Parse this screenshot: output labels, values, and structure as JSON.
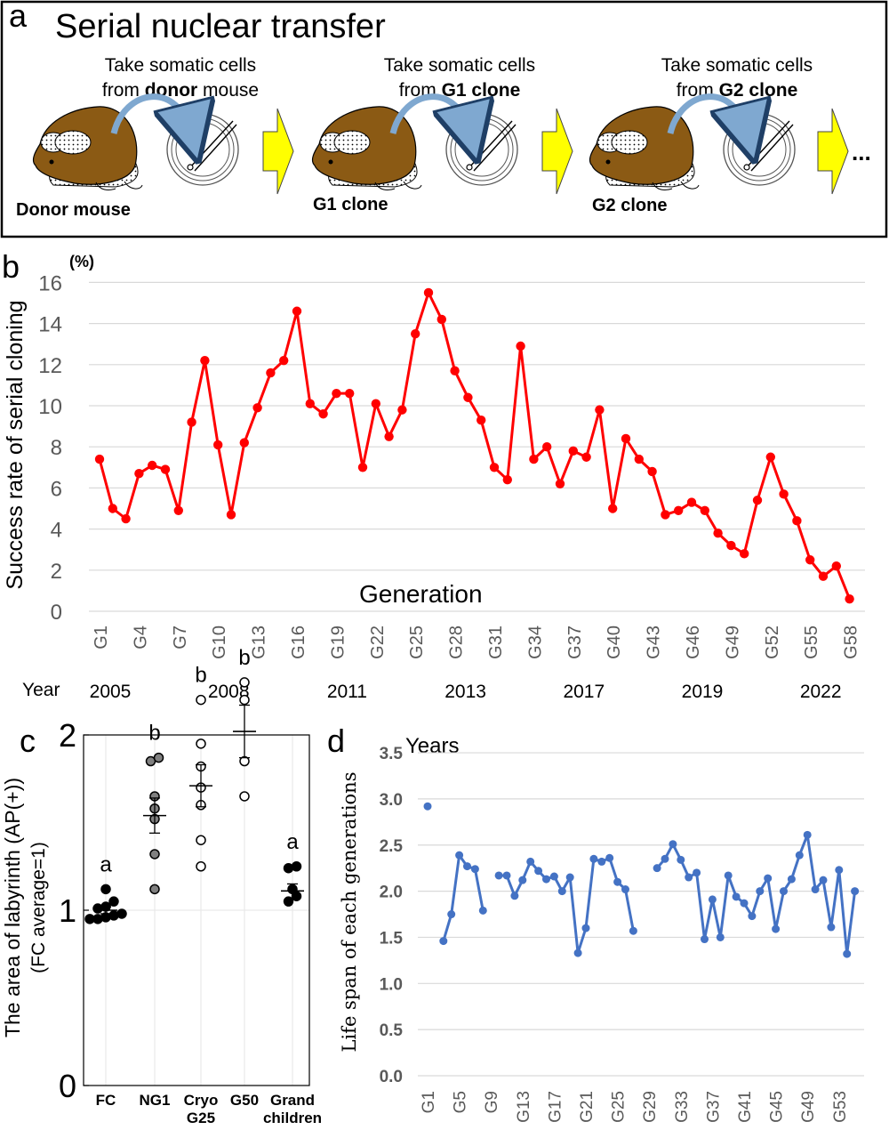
{
  "panel_a": {
    "letter": "a",
    "title": "Serial nuclear transfer",
    "steps": [
      {
        "line1": "Take somatic cells",
        "pre": "from ",
        "bold": "donor",
        "post": " mouse",
        "label": "Donor mouse"
      },
      {
        "line1": "Take somatic cells",
        "pre": "from ",
        "bold": "G1 clone",
        "post": "",
        "label": "G1 clone"
      },
      {
        "line1": "Take somatic cells",
        "pre": "from ",
        "bold": "G2 clone",
        "post": "",
        "label": "G2 clone"
      }
    ],
    "ellipsis": "...",
    "colors": {
      "mouse": "#8B5A14",
      "arrow": "#FFFF00",
      "curve_arrow": "#7FA8D0"
    }
  },
  "panel_b": {
    "letter": "b",
    "color": "#FF0000",
    "unit": "(%)",
    "ylabel": "Success rate of serial cloning",
    "annotation": "Generation",
    "year_label": "Year",
    "years": [
      {
        "label": "2005",
        "gen": 1
      },
      {
        "label": "2008",
        "gen": 10
      },
      {
        "label": "2011",
        "gen": 19
      },
      {
        "label": "2013",
        "gen": 28
      },
      {
        "label": "2017",
        "gen": 37
      },
      {
        "label": "2019",
        "gen": 46
      },
      {
        "label": "2022",
        "gen": 55
      }
    ]
  },
  "panel_c": {
    "letter": "c",
    "ylabel": "The area of labyrinth (AP(+))",
    "ylabel2": "(FC average=1)"
  },
  "panel_d": {
    "letter": "d",
    "color": "#4472C4",
    "unit": "Years",
    "ylabel": "Life span of each generations"
  },
  "chart_data": [
    {
      "panel": "b",
      "type": "line",
      "xlabel": "",
      "ylabel": "Success rate of serial cloning",
      "ylim": [
        0,
        16
      ],
      "yticks": [
        0,
        2,
        4,
        6,
        8,
        10,
        12,
        14,
        16
      ],
      "grid": true,
      "xticks": [
        "G1",
        "G4",
        "G7",
        "G10",
        "G13",
        "G16",
        "G19",
        "G22",
        "G25",
        "G28",
        "G31",
        "G34",
        "G37",
        "G40",
        "G43",
        "G46",
        "G49",
        "G52",
        "G55",
        "G58"
      ],
      "x": [
        1,
        2,
        3,
        4,
        5,
        6,
        7,
        8,
        9,
        10,
        11,
        12,
        13,
        14,
        15,
        16,
        17,
        18,
        19,
        20,
        21,
        22,
        23,
        24,
        25,
        26,
        27,
        28,
        29,
        30,
        31,
        32,
        33,
        34,
        35,
        36,
        37,
        38,
        39,
        40,
        41,
        42,
        43,
        44,
        45,
        46,
        47,
        48,
        49,
        50,
        51,
        52,
        53,
        54,
        55,
        56,
        57,
        58
      ],
      "series": [
        {
          "values": [
            7.4,
            5.0,
            4.5,
            6.7,
            7.1,
            6.9,
            4.9,
            9.2,
            12.2,
            8.1,
            4.7,
            8.2,
            9.9,
            11.6,
            12.2,
            14.6,
            10.1,
            9.6,
            10.6,
            10.6,
            7.0,
            10.1,
            8.5,
            9.8,
            13.5,
            15.5,
            14.2,
            11.7,
            10.4,
            9.3,
            7.0,
            6.4,
            12.9,
            7.4,
            8.0,
            6.2,
            7.8,
            7.5,
            9.8,
            5.0,
            8.4,
            7.4,
            6.8,
            4.7,
            4.9,
            5.3,
            4.9,
            3.8,
            3.2,
            2.8,
            5.4,
            7.5,
            5.7,
            4.4,
            2.5,
            1.7,
            2.2,
            0.6
          ]
        }
      ]
    },
    {
      "panel": "c",
      "type": "scatter",
      "categories": [
        "FC",
        "NG1",
        "Cryo\nG25",
        "G50",
        "Grand\nchildren"
      ],
      "ylim": [
        0,
        2.8
      ],
      "yticks": [
        0,
        1,
        2
      ],
      "letters": [
        "a",
        "b",
        "b",
        "b",
        "a"
      ],
      "fills": [
        "#000000",
        "#808080",
        "#ffffff",
        "#ffffff",
        "#000000"
      ],
      "points": [
        [
          0.95,
          0.95,
          0.96,
          0.97,
          0.98,
          1.01,
          1.02,
          1.05,
          1.12
        ],
        [
          1.12,
          1.32,
          1.52,
          1.58,
          1.65,
          1.85,
          1.87
        ],
        [
          1.25,
          1.4,
          1.6,
          1.7,
          1.82,
          1.95,
          2.2
        ],
        [
          1.65,
          1.85,
          2.2,
          2.3
        ],
        [
          1.05,
          1.08,
          1.12,
          1.24,
          1.25
        ]
      ],
      "means": [
        1.0,
        1.54,
        1.71,
        2.02,
        1.11
      ],
      "sems": [
        0.02,
        0.1,
        0.12,
        0.15,
        0.04
      ]
    },
    {
      "panel": "d",
      "type": "line",
      "ylabel": "Life span of each generations",
      "ylim": [
        0,
        3.5
      ],
      "yticks": [
        "0.0",
        "0.5",
        "1.0",
        "1.5",
        "2.0",
        "2.5",
        "3.0",
        "3.5"
      ],
      "grid": true,
      "xticks": [
        "G1",
        "G5",
        "G9",
        "G13",
        "G17",
        "G21",
        "G25",
        "G29",
        "G33",
        "G37",
        "G41",
        "G45",
        "G49",
        "G53"
      ],
      "x": [
        1,
        2,
        3,
        4,
        5,
        6,
        7,
        8,
        9,
        10,
        11,
        12,
        13,
        14,
        15,
        16,
        17,
        18,
        19,
        20,
        21,
        22,
        23,
        24,
        25,
        26,
        27,
        28,
        29,
        30,
        31,
        32,
        33,
        34,
        35,
        36,
        37,
        38,
        39,
        40,
        41,
        42,
        43,
        44,
        45,
        46,
        47,
        48,
        49,
        50,
        51,
        52,
        53,
        54,
        55
      ],
      "series": [
        {
          "values": [
            2.92,
            null,
            1.46,
            1.75,
            2.39,
            2.27,
            2.24,
            1.79,
            null,
            2.17,
            2.17,
            1.95,
            2.12,
            2.32,
            2.22,
            2.13,
            2.16,
            2.0,
            2.15,
            1.33,
            1.6,
            2.35,
            2.32,
            2.36,
            2.1,
            2.02,
            1.57,
            null,
            null,
            2.25,
            2.35,
            2.51,
            2.34,
            2.15,
            2.2,
            1.48,
            1.91,
            1.5,
            2.17,
            1.94,
            1.87,
            1.73,
            2.0,
            2.14,
            1.59,
            2.0,
            2.13,
            2.39,
            2.61,
            2.02,
            2.12,
            1.61,
            2.23,
            1.32,
            2.0
          ]
        }
      ]
    }
  ]
}
